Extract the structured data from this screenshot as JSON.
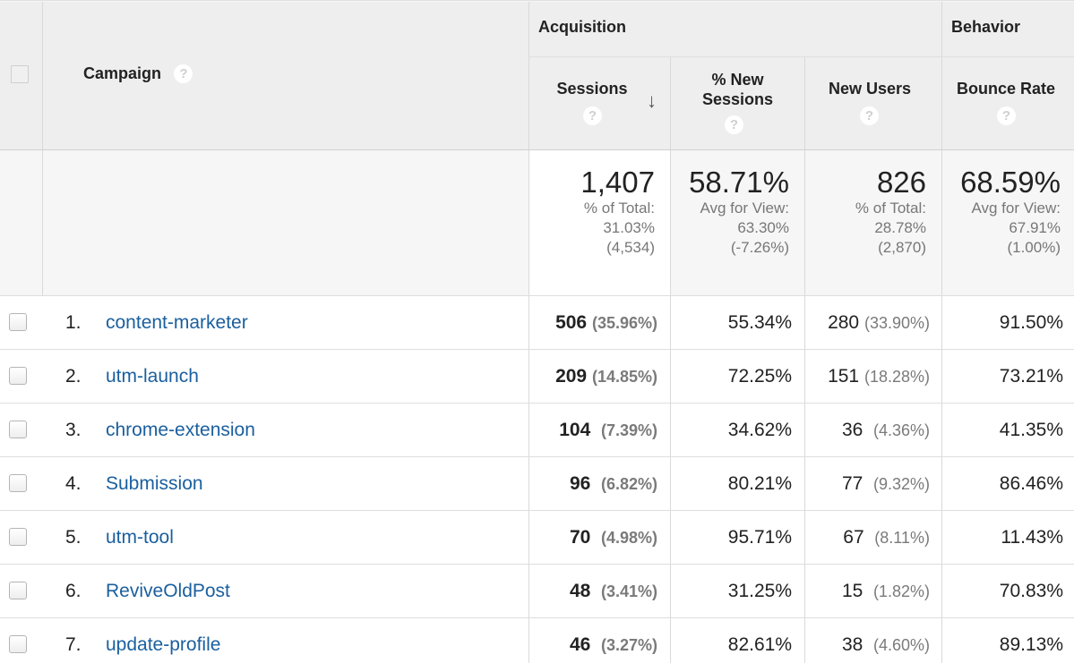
{
  "headers": {
    "campaign": "Campaign",
    "acquisition": "Acquisition",
    "behavior": "Behavior",
    "sessions": "Sessions",
    "new_sessions_line1": "% New",
    "new_sessions_line2": "Sessions",
    "new_users": "New Users",
    "bounce_rate": "Bounce Rate",
    "help": "?",
    "sort_arrow": "↓"
  },
  "totals": {
    "sessions": {
      "value": "1,407",
      "l1": "% of Total:",
      "l2": "31.03%",
      "l3": "(4,534)"
    },
    "new_sessions": {
      "value": "58.71%",
      "l1": "Avg for View:",
      "l2": "63.30%",
      "l3": "(-7.26%)"
    },
    "new_users": {
      "value": "826",
      "l1": "% of Total:",
      "l2": "28.78%",
      "l3": "(2,870)"
    },
    "bounce_rate": {
      "value": "68.59%",
      "l1": "Avg for View:",
      "l2": "67.91%",
      "l3": "(1.00%)"
    }
  },
  "rows": [
    {
      "idx": "1.",
      "campaign": "content-marketer",
      "sessions": "506",
      "sessions_pct": "(35.96%)",
      "new_sessions": "55.34%",
      "new_users": "280",
      "new_users_pct": "(33.90%)",
      "bounce": "91.50%"
    },
    {
      "idx": "2.",
      "campaign": "utm-launch",
      "sessions": "209",
      "sessions_pct": "(14.85%)",
      "new_sessions": "72.25%",
      "new_users": "151",
      "new_users_pct": "(18.28%)",
      "bounce": "73.21%"
    },
    {
      "idx": "3.",
      "campaign": "chrome-extension",
      "sessions": "104",
      "sessions_pct": "(7.39%)",
      "new_sessions": "34.62%",
      "new_users": "36",
      "new_users_pct": "(4.36%)",
      "bounce": "41.35%"
    },
    {
      "idx": "4.",
      "campaign": "Submission",
      "sessions": "96",
      "sessions_pct": "(6.82%)",
      "new_sessions": "80.21%",
      "new_users": "77",
      "new_users_pct": "(9.32%)",
      "bounce": "86.46%"
    },
    {
      "idx": "5.",
      "campaign": "utm-tool",
      "sessions": "70",
      "sessions_pct": "(4.98%)",
      "new_sessions": "95.71%",
      "new_users": "67",
      "new_users_pct": "(8.11%)",
      "bounce": "11.43%"
    },
    {
      "idx": "6.",
      "campaign": "ReviveOldPost",
      "sessions": "48",
      "sessions_pct": "(3.41%)",
      "new_sessions": "31.25%",
      "new_users": "15",
      "new_users_pct": "(1.82%)",
      "bounce": "70.83%"
    },
    {
      "idx": "7.",
      "campaign": "update-profile",
      "sessions": "46",
      "sessions_pct": "(3.27%)",
      "new_sessions": "82.61%",
      "new_users": "38",
      "new_users_pct": "(4.60%)",
      "bounce": "89.13%"
    }
  ]
}
